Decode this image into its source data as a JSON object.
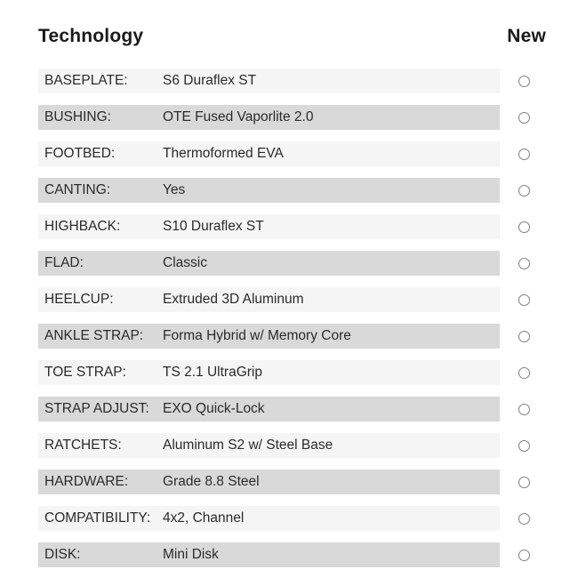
{
  "header": {
    "title": "Technology",
    "new_label": "New"
  },
  "rows": [
    {
      "label": "BASEPLATE:",
      "value": "S6 Duraflex ST",
      "selected": false
    },
    {
      "label": "BUSHING:",
      "value": "OTE Fused Vaporlite 2.0",
      "selected": false
    },
    {
      "label": "FOOTBED:",
      "value": "Thermoformed EVA",
      "selected": false
    },
    {
      "label": "CANTING:",
      "value": "Yes",
      "selected": false
    },
    {
      "label": "HIGHBACK:",
      "value": "S10 Duraflex ST",
      "selected": false
    },
    {
      "label": "FLAD:",
      "value": "Classic",
      "selected": false
    },
    {
      "label": "HEELCUP:",
      "value": "Extruded 3D Aluminum",
      "selected": false
    },
    {
      "label": "ANKLE STRAP:",
      "value": "Forma Hybrid w/ Memory Core",
      "selected": false
    },
    {
      "label": "TOE STRAP:",
      "value": "TS 2.1 UltraGrip",
      "selected": false
    },
    {
      "label": "STRAP ADJUST:",
      "value": "EXO Quick-Lock",
      "selected": false
    },
    {
      "label": "RATCHETS:",
      "value": "Aluminum S2 w/ Steel Base",
      "selected": false
    },
    {
      "label": "HARDWARE:",
      "value": "Grade 8.8 Steel",
      "selected": false
    },
    {
      "label": "COMPATIBILITY:",
      "value": "4x2, Channel",
      "selected": false
    },
    {
      "label": "DISK:",
      "value": "Mini Disk",
      "selected": false
    }
  ],
  "colors": {
    "row_light": "#f5f5f5",
    "row_dark": "#d9d9d9",
    "text": "#2b2b2b",
    "heading": "#1a1a1a",
    "radio_border": "#7f7f7f",
    "page_bg": "#ffffff"
  }
}
